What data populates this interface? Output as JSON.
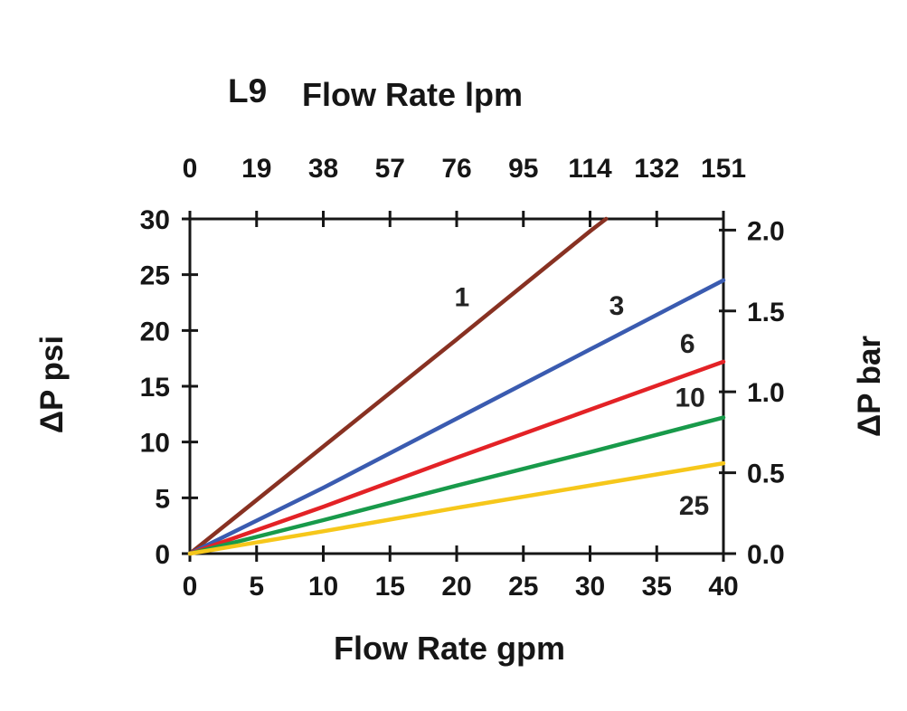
{
  "page": {
    "background": "#ffffff"
  },
  "chart_data": {
    "type": "line",
    "title": "L9 Flow Rate lpm",
    "series_title": "L9",
    "top_axis_title": "Flow Rate lpm",
    "bottom_axis_title": "Flow Rate gpm",
    "left_axis_title": "ΔP psi",
    "right_axis_title": "ΔP bar",
    "x_range": [
      0,
      40
    ],
    "y_range": [
      0,
      30
    ],
    "bottom_ticks": [
      0,
      5,
      10,
      15,
      20,
      25,
      30,
      35,
      40
    ],
    "top_ticks": [
      "0",
      "19",
      "38",
      "57",
      "76",
      "95",
      "114",
      "132",
      "151"
    ],
    "left_ticks": [
      0,
      5,
      10,
      15,
      20,
      25,
      30
    ],
    "right_ticks": [
      "0.0",
      "0.5",
      "1.0",
      "1.5",
      "2.0"
    ],
    "right_axis_psi_per_bar": 14.5,
    "axis_color": "#161616",
    "grid": false,
    "legend": "inline-labels",
    "series": [
      {
        "name": "1",
        "color": "#883122",
        "x": [
          0,
          10,
          20,
          30,
          31.2
        ],
        "y": [
          0,
          9.6,
          19.2,
          28.9,
          30
        ],
        "label_at": [
          20.4,
          23.0
        ]
      },
      {
        "name": "3",
        "color": "#3a5bb0",
        "x": [
          0,
          10,
          20,
          30,
          40
        ],
        "y": [
          0,
          5.9,
          12.1,
          18.3,
          24.5
        ],
        "label_at": [
          32.0,
          22.2
        ]
      },
      {
        "name": "6",
        "color": "#e32226",
        "x": [
          0,
          10,
          20,
          30,
          40
        ],
        "y": [
          0,
          4.2,
          8.6,
          12.9,
          17.2
        ],
        "label_at": [
          37.3,
          18.8
        ]
      },
      {
        "name": "10",
        "color": "#189a4a",
        "x": [
          0,
          10,
          20,
          30,
          40
        ],
        "y": [
          0,
          3.0,
          6.1,
          9.1,
          12.2
        ],
        "label_at": [
          37.5,
          14.0
        ]
      },
      {
        "name": "25",
        "color": "#f6c71b",
        "x": [
          0,
          10,
          20,
          30,
          40
        ],
        "y": [
          0,
          2.0,
          4.1,
          6.1,
          8.1
        ],
        "label_at": [
          37.8,
          4.3
        ]
      }
    ]
  }
}
